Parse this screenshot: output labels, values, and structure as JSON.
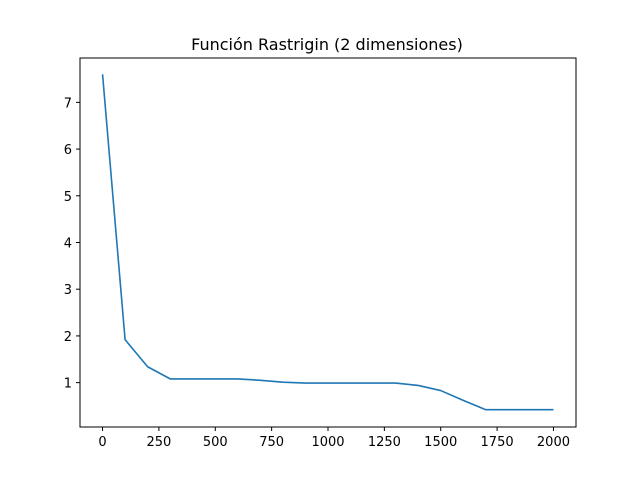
{
  "chart_data": {
    "type": "line",
    "title": "Función Rastrigin (2 dimensiones)",
    "xlabel": "",
    "ylabel": "",
    "xlim": [
      -100,
      2100
    ],
    "ylim": [
      0.05,
      7.95
    ],
    "x_ticks": [
      0,
      250,
      500,
      750,
      1000,
      1250,
      1500,
      1750,
      2000
    ],
    "y_ticks": [
      1,
      2,
      3,
      4,
      5,
      6,
      7
    ],
    "grid": false,
    "series": [
      {
        "color": "#1f77b4",
        "x": [
          0,
          100,
          200,
          300,
          400,
          500,
          600,
          700,
          800,
          900,
          1000,
          1100,
          1200,
          1300,
          1400,
          1500,
          1600,
          1700,
          1800,
          1900,
          2000
        ],
        "values": [
          7.6,
          1.92,
          1.34,
          1.08,
          1.08,
          1.08,
          1.08,
          1.05,
          1.01,
          0.99,
          0.99,
          0.99,
          0.99,
          0.99,
          0.94,
          0.83,
          0.62,
          0.42,
          0.42,
          0.42,
          0.42
        ]
      }
    ]
  }
}
